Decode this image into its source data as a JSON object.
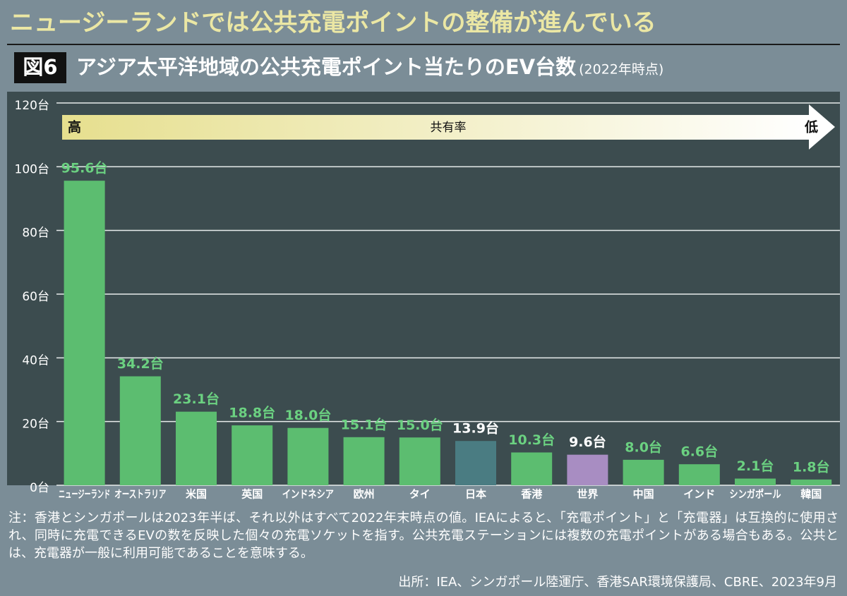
{
  "headline": "ニュージーランドでは公共充電ポイントの整備が進んでいる",
  "chart_data": {
    "type": "bar",
    "figure_label": "図6",
    "title": "アジア太平洋地域の公共充電ポイント当たりのEV台数",
    "subtitle": "(2022年時点)",
    "arrow_label": "共有率",
    "arrow_start": "高",
    "arrow_end": "低",
    "categories": [
      "ニュージーランド",
      "オーストラリア",
      "米国",
      "英国",
      "インドネシア",
      "欧州",
      "タイ",
      "日本",
      "香港",
      "世界",
      "中国",
      "インド",
      "シンガポール",
      "韓国"
    ],
    "values": [
      95.6,
      34.2,
      23.1,
      18.8,
      18.0,
      15.1,
      15.0,
      13.9,
      10.3,
      9.6,
      8.0,
      6.6,
      2.1,
      1.8
    ],
    "value_labels": [
      "95.6台",
      "34.2台",
      "23.1台",
      "18.8台",
      "18.0台",
      "15.1台",
      "15.0台",
      "13.9台",
      "10.3台",
      "9.6台",
      "8.0台",
      "6.6台",
      "2.1台",
      "1.8台"
    ],
    "colors": [
      "#5cbd70",
      "#5cbd70",
      "#5cbd70",
      "#5cbd70",
      "#5cbd70",
      "#5cbd70",
      "#5cbd70",
      "#4a7c82",
      "#5cbd70",
      "#a88dc2",
      "#5cbd70",
      "#5cbd70",
      "#5cbd70",
      "#5cbd70"
    ],
    "label_colors": [
      "#6bd181",
      "#6bd181",
      "#6bd181",
      "#6bd181",
      "#6bd181",
      "#6bd181",
      "#6bd181",
      "#ffffff",
      "#6bd181",
      "#ffffff",
      "#6bd181",
      "#6bd181",
      "#6bd181",
      "#6bd181"
    ],
    "ylim": [
      0,
      120
    ],
    "yticks": [
      {
        "value": 0,
        "label": "0台"
      },
      {
        "value": 20,
        "label": "20台"
      },
      {
        "value": 40,
        "label": "40台"
      },
      {
        "value": 60,
        "label": "60台"
      },
      {
        "value": 80,
        "label": "80台"
      },
      {
        "value": 100,
        "label": "100台"
      },
      {
        "value": 120,
        "label": "120台"
      }
    ],
    "grid": true
  },
  "note": "注：香港とシンガポールは2023年半ば、それ以外はすべて2022年末時点の値。IEAによると、「充電ポイント」と「充電器」は互換的に使用され、同時に充電できるEVの数を反映した個々の充電ソケットを指す。公共充電ステーションには複数の充電ポイントがある場合もある。公共とは、充電器が一般に利用可能であることを意味する。",
  "source": "出所：IEA、シンガポール陸運庁、香港SAR環境保護局、CBRE、2023年9月"
}
